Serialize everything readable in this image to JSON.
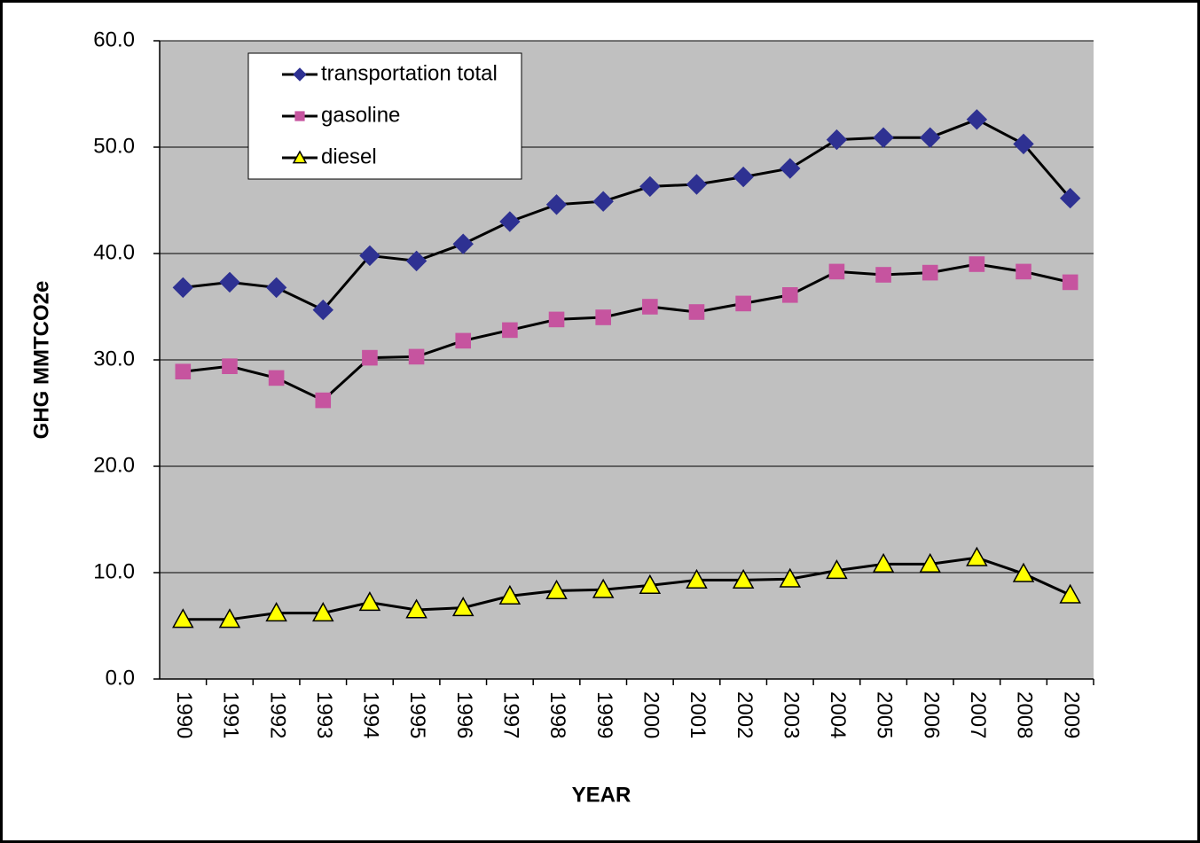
{
  "chart_data": {
    "type": "line",
    "y_label": "GHG MMTCO2e",
    "x_label": "YEAR",
    "categories": [
      "1990",
      "1991",
      "1992",
      "1993",
      "1994",
      "1995",
      "1996",
      "1997",
      "1998",
      "1999",
      "2000",
      "2001",
      "2002",
      "2003",
      "2004",
      "2005",
      "2006",
      "2007",
      "2008",
      "2009"
    ],
    "series": [
      {
        "name": "transportation total",
        "color": "#2e3192",
        "marker": "diamond",
        "values": [
          36.8,
          37.3,
          36.8,
          34.7,
          39.8,
          39.3,
          40.9,
          43.0,
          44.6,
          44.9,
          46.3,
          46.5,
          47.2,
          48.0,
          50.7,
          50.9,
          50.9,
          52.6,
          50.3,
          45.2
        ]
      },
      {
        "name": "gasoline",
        "color": "#c6549f",
        "marker": "square",
        "values": [
          28.9,
          29.4,
          28.3,
          26.2,
          30.2,
          30.3,
          31.8,
          32.8,
          33.8,
          34.0,
          35.0,
          34.5,
          35.3,
          36.1,
          38.3,
          38.0,
          38.2,
          39.0,
          38.3,
          37.3
        ]
      },
      {
        "name": "diesel",
        "color": "#ffff00",
        "marker": "triangle",
        "values": [
          5.6,
          5.6,
          6.2,
          6.2,
          7.2,
          6.5,
          6.7,
          7.8,
          8.3,
          8.4,
          8.8,
          9.3,
          9.3,
          9.4,
          10.2,
          10.8,
          10.8,
          11.4,
          9.9,
          7.9
        ]
      }
    ],
    "ylim": [
      0,
      60
    ],
    "yticks": [
      {
        "value": 0,
        "label": "0.0"
      },
      {
        "value": 10,
        "label": "10.0"
      },
      {
        "value": 20,
        "label": "20.0"
      },
      {
        "value": 30,
        "label": "30.0"
      },
      {
        "value": 40,
        "label": "40.0"
      },
      {
        "value": 50,
        "label": "50.0"
      },
      {
        "value": 60,
        "label": "60.0"
      }
    ],
    "grid": true,
    "line_color": "#000000",
    "plot_background": "#c0c0c0"
  }
}
